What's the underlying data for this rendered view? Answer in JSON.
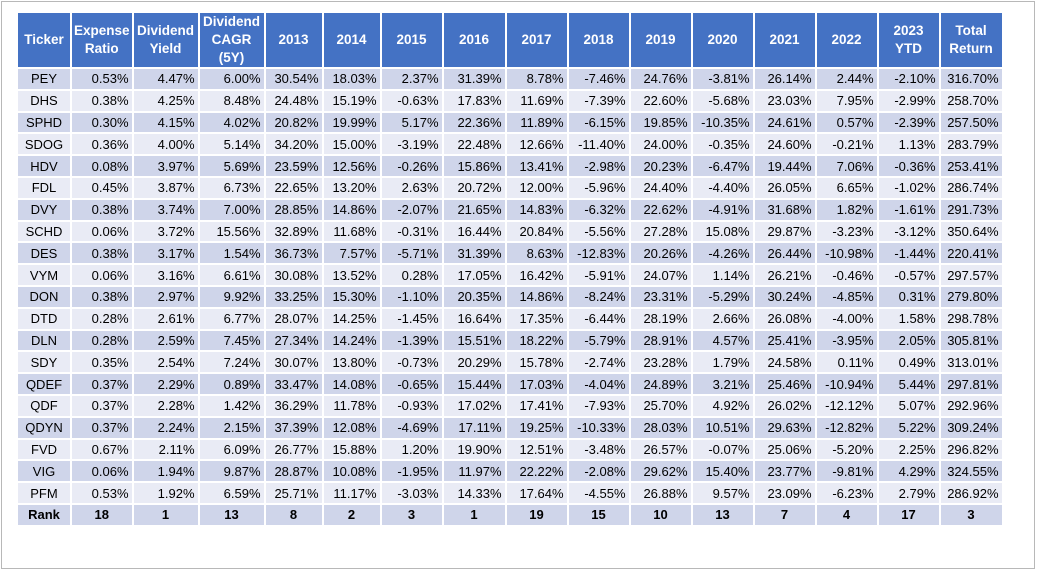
{
  "table": {
    "headers": [
      "Ticker",
      "Expense Ratio",
      "Dividend Yield",
      "Dividend CAGR (5Y)",
      "2013",
      "2014",
      "2015",
      "2016",
      "2017",
      "2018",
      "2019",
      "2020",
      "2021",
      "2022",
      "2023 YTD",
      "Total Return"
    ],
    "rows": [
      [
        "PEY",
        "0.53%",
        "4.47%",
        "6.00%",
        "30.54%",
        "18.03%",
        "2.37%",
        "31.39%",
        "8.78%",
        "-7.46%",
        "24.76%",
        "-3.81%",
        "26.14%",
        "2.44%",
        "-2.10%",
        "316.70%"
      ],
      [
        "DHS",
        "0.38%",
        "4.25%",
        "8.48%",
        "24.48%",
        "15.19%",
        "-0.63%",
        "17.83%",
        "11.69%",
        "-7.39%",
        "22.60%",
        "-5.68%",
        "23.03%",
        "7.95%",
        "-2.99%",
        "258.70%"
      ],
      [
        "SPHD",
        "0.30%",
        "4.15%",
        "4.02%",
        "20.82%",
        "19.99%",
        "5.17%",
        "22.36%",
        "11.89%",
        "-6.15%",
        "19.85%",
        "-10.35%",
        "24.61%",
        "0.57%",
        "-2.39%",
        "257.50%"
      ],
      [
        "SDOG",
        "0.36%",
        "4.00%",
        "5.14%",
        "34.20%",
        "15.00%",
        "-3.19%",
        "22.48%",
        "12.66%",
        "-11.40%",
        "24.00%",
        "-0.35%",
        "24.60%",
        "-0.21%",
        "1.13%",
        "283.79%"
      ],
      [
        "HDV",
        "0.08%",
        "3.97%",
        "5.69%",
        "23.59%",
        "12.56%",
        "-0.26%",
        "15.86%",
        "13.41%",
        "-2.98%",
        "20.23%",
        "-6.47%",
        "19.44%",
        "7.06%",
        "-0.36%",
        "253.41%"
      ],
      [
        "FDL",
        "0.45%",
        "3.87%",
        "6.73%",
        "22.65%",
        "13.20%",
        "2.63%",
        "20.72%",
        "12.00%",
        "-5.96%",
        "24.40%",
        "-4.40%",
        "26.05%",
        "6.65%",
        "-1.02%",
        "286.74%"
      ],
      [
        "DVY",
        "0.38%",
        "3.74%",
        "7.00%",
        "28.85%",
        "14.86%",
        "-2.07%",
        "21.65%",
        "14.83%",
        "-6.32%",
        "22.62%",
        "-4.91%",
        "31.68%",
        "1.82%",
        "-1.61%",
        "291.73%"
      ],
      [
        "SCHD",
        "0.06%",
        "3.72%",
        "15.56%",
        "32.89%",
        "11.68%",
        "-0.31%",
        "16.44%",
        "20.84%",
        "-5.56%",
        "27.28%",
        "15.08%",
        "29.87%",
        "-3.23%",
        "-3.12%",
        "350.64%"
      ],
      [
        "DES",
        "0.38%",
        "3.17%",
        "1.54%",
        "36.73%",
        "7.57%",
        "-5.71%",
        "31.39%",
        "8.63%",
        "-12.83%",
        "20.26%",
        "-4.26%",
        "26.44%",
        "-10.98%",
        "-1.44%",
        "220.41%"
      ],
      [
        "VYM",
        "0.06%",
        "3.16%",
        "6.61%",
        "30.08%",
        "13.52%",
        "0.28%",
        "17.05%",
        "16.42%",
        "-5.91%",
        "24.07%",
        "1.14%",
        "26.21%",
        "-0.46%",
        "-0.57%",
        "297.57%"
      ],
      [
        "DON",
        "0.38%",
        "2.97%",
        "9.92%",
        "33.25%",
        "15.30%",
        "-1.10%",
        "20.35%",
        "14.86%",
        "-8.24%",
        "23.31%",
        "-5.29%",
        "30.24%",
        "-4.85%",
        "0.31%",
        "279.80%"
      ],
      [
        "DTD",
        "0.28%",
        "2.61%",
        "6.77%",
        "28.07%",
        "14.25%",
        "-1.45%",
        "16.64%",
        "17.35%",
        "-6.44%",
        "28.19%",
        "2.66%",
        "26.08%",
        "-4.00%",
        "1.58%",
        "298.78%"
      ],
      [
        "DLN",
        "0.28%",
        "2.59%",
        "7.45%",
        "27.34%",
        "14.24%",
        "-1.39%",
        "15.51%",
        "18.22%",
        "-5.79%",
        "28.91%",
        "4.57%",
        "25.41%",
        "-3.95%",
        "2.05%",
        "305.81%"
      ],
      [
        "SDY",
        "0.35%",
        "2.54%",
        "7.24%",
        "30.07%",
        "13.80%",
        "-0.73%",
        "20.29%",
        "15.78%",
        "-2.74%",
        "23.28%",
        "1.79%",
        "24.58%",
        "0.11%",
        "0.49%",
        "313.01%"
      ],
      [
        "QDEF",
        "0.37%",
        "2.29%",
        "0.89%",
        "33.47%",
        "14.08%",
        "-0.65%",
        "15.44%",
        "17.03%",
        "-4.04%",
        "24.89%",
        "3.21%",
        "25.46%",
        "-10.94%",
        "5.44%",
        "297.81%"
      ],
      [
        "QDF",
        "0.37%",
        "2.28%",
        "1.42%",
        "36.29%",
        "11.78%",
        "-0.93%",
        "17.02%",
        "17.41%",
        "-7.93%",
        "25.70%",
        "4.92%",
        "26.02%",
        "-12.12%",
        "5.07%",
        "292.96%"
      ],
      [
        "QDYN",
        "0.37%",
        "2.24%",
        "2.15%",
        "37.39%",
        "12.08%",
        "-4.69%",
        "17.11%",
        "19.25%",
        "-10.33%",
        "28.03%",
        "10.51%",
        "29.63%",
        "-12.82%",
        "5.22%",
        "309.24%"
      ],
      [
        "FVD",
        "0.67%",
        "2.11%",
        "6.09%",
        "26.77%",
        "15.88%",
        "1.20%",
        "19.90%",
        "12.51%",
        "-3.48%",
        "26.57%",
        "-0.07%",
        "25.06%",
        "-5.20%",
        "2.25%",
        "296.82%"
      ],
      [
        "VIG",
        "0.06%",
        "1.94%",
        "9.87%",
        "28.87%",
        "10.08%",
        "-1.95%",
        "11.97%",
        "22.22%",
        "-2.08%",
        "29.62%",
        "15.40%",
        "23.77%",
        "-9.81%",
        "4.29%",
        "324.55%"
      ],
      [
        "PFM",
        "0.53%",
        "1.92%",
        "6.59%",
        "25.71%",
        "11.17%",
        "-3.03%",
        "14.33%",
        "17.64%",
        "-4.55%",
        "26.88%",
        "9.57%",
        "23.09%",
        "-6.23%",
        "2.79%",
        "286.92%"
      ]
    ],
    "rank_row": [
      "Rank",
      "18",
      "1",
      "13",
      "8",
      "2",
      "3",
      "1",
      "19",
      "15",
      "10",
      "13",
      "7",
      "4",
      "17",
      "3"
    ]
  },
  "colors": {
    "header_bg": "#4472c4",
    "row_dark": "#cfd5ea",
    "row_light": "#e9ebf5"
  }
}
